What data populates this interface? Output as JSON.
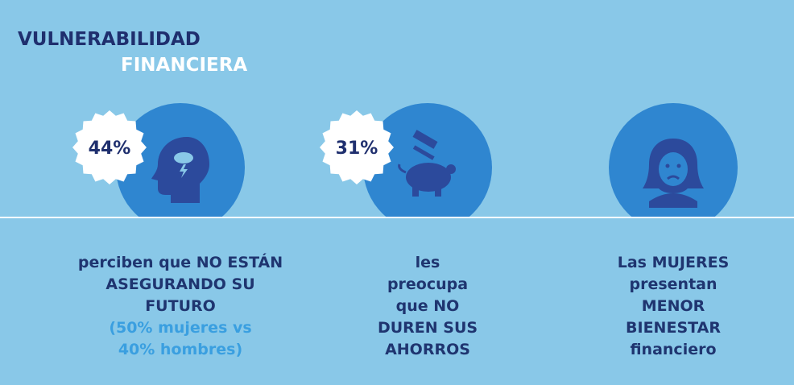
{
  "header": {
    "title_line1": "VULNERABILIDAD",
    "title_line2": "FINANCIERA"
  },
  "items": [
    {
      "badge": "44%",
      "lines": [
        "perciben que NO ESTÁN",
        "ASEGURANDO SU",
        "FUTURO"
      ],
      "note": [
        "(50% mujeres vs",
        "40% hombres)"
      ]
    },
    {
      "badge": "31%",
      "lines": [
        "les",
        "preocupa",
        "que NO",
        "DUREN SUS",
        "AHORROS"
      ]
    },
    {
      "lines": [
        "Las MUJERES",
        "presentan",
        "MENOR",
        "BIENESTAR",
        "financiero"
      ]
    }
  ]
}
